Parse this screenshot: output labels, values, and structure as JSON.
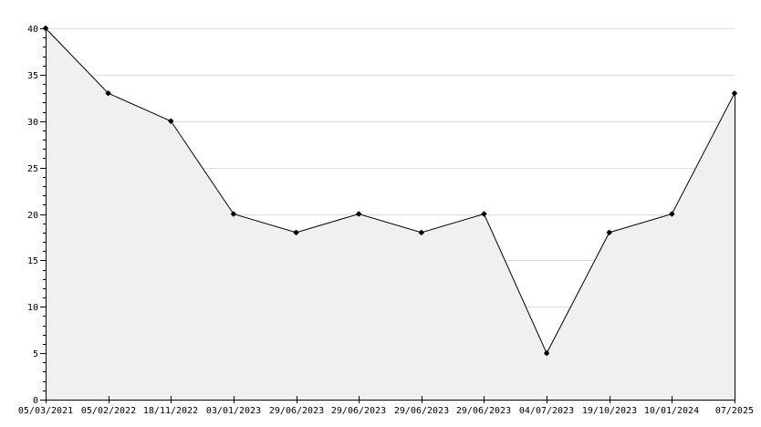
{
  "chart_data": {
    "type": "area",
    "title": "",
    "xlabel": "",
    "ylabel": "",
    "categories": [
      "05/03/2021",
      "05/02/2022",
      "18/11/2022",
      "03/01/2023",
      "29/06/2023",
      "29/06/2023",
      "29/06/2023",
      "29/06/2023",
      "04/07/2023",
      "19/10/2023",
      "10/01/2024",
      "07/2025"
    ],
    "values": [
      40,
      33,
      30,
      20,
      18,
      20,
      18,
      20,
      5,
      18,
      20,
      33
    ],
    "ylim": [
      0,
      40
    ],
    "y_ticks": [
      0,
      5,
      10,
      15,
      20,
      25,
      30,
      35,
      40
    ],
    "y_minor_step": 1,
    "grid": true,
    "legend": "none",
    "colors": {
      "fill": "#f0f0f0",
      "line": "#000000",
      "marker": "#000000",
      "grid": "#dcdcdc"
    }
  }
}
